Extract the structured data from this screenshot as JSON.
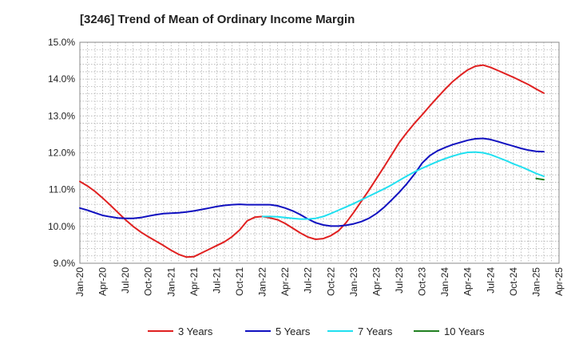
{
  "header": {
    "title": "[3246]  Trend of Mean of Ordinary Income Margin"
  },
  "chart_data": {
    "type": "line",
    "title": "[3246]  Trend of Mean of Ordinary Income Margin",
    "xlabel": "",
    "ylabel": "",
    "x_ticks": [
      "Jan-20",
      "Apr-20",
      "Jul-20",
      "Oct-20",
      "Jan-21",
      "Apr-21",
      "Jul-21",
      "Oct-21",
      "Jan-22",
      "Apr-22",
      "Jul-22",
      "Oct-22",
      "Jan-23",
      "Apr-23",
      "Jul-23",
      "Oct-23",
      "Jan-24",
      "Apr-24",
      "Jul-24",
      "Oct-24",
      "Jan-25",
      "Apr-25"
    ],
    "y_ticks": [
      "9.0%",
      "10.0%",
      "11.0%",
      "12.0%",
      "13.0%",
      "14.0%",
      "15.0%"
    ],
    "ylim": [
      9.0,
      15.0
    ],
    "grid": true,
    "legend_position": "bottom",
    "series": [
      {
        "name": "3 Years",
        "color": "#e02020",
        "points": [
          [
            "Jan-20",
            11.22
          ],
          [
            "Feb-20",
            11.1
          ],
          [
            "Mar-20",
            10.95
          ],
          [
            "Apr-20",
            10.77
          ],
          [
            "May-20",
            10.58
          ],
          [
            "Jun-20",
            10.38
          ],
          [
            "Jul-20",
            10.18
          ],
          [
            "Aug-20",
            10.0
          ],
          [
            "Sep-20",
            9.85
          ],
          [
            "Oct-20",
            9.72
          ],
          [
            "Nov-20",
            9.6
          ],
          [
            "Dec-20",
            9.48
          ],
          [
            "Jan-21",
            9.35
          ],
          [
            "Feb-21",
            9.24
          ],
          [
            "Mar-21",
            9.17
          ],
          [
            "Apr-21",
            9.18
          ],
          [
            "May-21",
            9.28
          ],
          [
            "Jun-21",
            9.38
          ],
          [
            "Jul-21",
            9.48
          ],
          [
            "Aug-21",
            9.58
          ],
          [
            "Sep-21",
            9.72
          ],
          [
            "Oct-21",
            9.9
          ],
          [
            "Nov-21",
            10.15
          ],
          [
            "Dec-21",
            10.25
          ],
          [
            "Jan-22",
            10.27
          ],
          [
            "Feb-22",
            10.23
          ],
          [
            "Mar-22",
            10.18
          ],
          [
            "Apr-22",
            10.08
          ],
          [
            "May-22",
            9.95
          ],
          [
            "Jun-22",
            9.82
          ],
          [
            "Jul-22",
            9.71
          ],
          [
            "Aug-22",
            9.65
          ],
          [
            "Sep-22",
            9.67
          ],
          [
            "Oct-22",
            9.75
          ],
          [
            "Nov-22",
            9.88
          ],
          [
            "Dec-22",
            10.1
          ],
          [
            "Jan-23",
            10.38
          ],
          [
            "Feb-23",
            10.68
          ],
          [
            "Mar-23",
            10.98
          ],
          [
            "Apr-23",
            11.3
          ],
          [
            "May-23",
            11.62
          ],
          [
            "Jun-23",
            11.95
          ],
          [
            "Jul-23",
            12.28
          ],
          [
            "Aug-23",
            12.55
          ],
          [
            "Sep-23",
            12.8
          ],
          [
            "Oct-23",
            13.03
          ],
          [
            "Nov-23",
            13.27
          ],
          [
            "Dec-23",
            13.5
          ],
          [
            "Jan-24",
            13.72
          ],
          [
            "Feb-24",
            13.93
          ],
          [
            "Mar-24",
            14.1
          ],
          [
            "Apr-24",
            14.25
          ],
          [
            "May-24",
            14.35
          ],
          [
            "Jun-24",
            14.38
          ],
          [
            "Jul-24",
            14.32
          ],
          [
            "Aug-24",
            14.23
          ],
          [
            "Sep-24",
            14.14
          ],
          [
            "Oct-24",
            14.05
          ],
          [
            "Nov-24",
            13.95
          ],
          [
            "Dec-24",
            13.85
          ],
          [
            "Jan-25",
            13.73
          ],
          [
            "Feb-25",
            13.62
          ]
        ]
      },
      {
        "name": "5 Years",
        "color": "#1010c0",
        "points": [
          [
            "Jan-20",
            10.5
          ],
          [
            "Feb-20",
            10.44
          ],
          [
            "Mar-20",
            10.37
          ],
          [
            "Apr-20",
            10.3
          ],
          [
            "May-20",
            10.26
          ],
          [
            "Jun-20",
            10.23
          ],
          [
            "Jul-20",
            10.22
          ],
          [
            "Aug-20",
            10.22
          ],
          [
            "Sep-20",
            10.24
          ],
          [
            "Oct-20",
            10.28
          ],
          [
            "Nov-20",
            10.32
          ],
          [
            "Dec-20",
            10.35
          ],
          [
            "Jan-21",
            10.36
          ],
          [
            "Feb-21",
            10.37
          ],
          [
            "Mar-21",
            10.39
          ],
          [
            "Apr-21",
            10.42
          ],
          [
            "May-21",
            10.46
          ],
          [
            "Jun-21",
            10.5
          ],
          [
            "Jul-21",
            10.54
          ],
          [
            "Aug-21",
            10.57
          ],
          [
            "Sep-21",
            10.59
          ],
          [
            "Oct-21",
            10.6
          ],
          [
            "Nov-21",
            10.59
          ],
          [
            "Dec-21",
            10.59
          ],
          [
            "Jan-22",
            10.59
          ],
          [
            "Feb-22",
            10.59
          ],
          [
            "Mar-22",
            10.56
          ],
          [
            "Apr-22",
            10.5
          ],
          [
            "May-22",
            10.42
          ],
          [
            "Jun-22",
            10.32
          ],
          [
            "Jul-22",
            10.2
          ],
          [
            "Aug-22",
            10.1
          ],
          [
            "Sep-22",
            10.04
          ],
          [
            "Oct-22",
            10.01
          ],
          [
            "Nov-22",
            10.01
          ],
          [
            "Dec-22",
            10.03
          ],
          [
            "Jan-23",
            10.07
          ],
          [
            "Feb-23",
            10.13
          ],
          [
            "Mar-23",
            10.22
          ],
          [
            "Apr-23",
            10.35
          ],
          [
            "May-23",
            10.52
          ],
          [
            "Jun-23",
            10.72
          ],
          [
            "Jul-23",
            10.93
          ],
          [
            "Aug-23",
            11.16
          ],
          [
            "Sep-23",
            11.42
          ],
          [
            "Oct-23",
            11.72
          ],
          [
            "Nov-23",
            11.92
          ],
          [
            "Dec-23",
            12.05
          ],
          [
            "Jan-24",
            12.14
          ],
          [
            "Feb-24",
            12.22
          ],
          [
            "Mar-24",
            12.28
          ],
          [
            "Apr-24",
            12.34
          ],
          [
            "May-24",
            12.38
          ],
          [
            "Jun-24",
            12.39
          ],
          [
            "Jul-24",
            12.36
          ],
          [
            "Aug-24",
            12.3
          ],
          [
            "Sep-24",
            12.24
          ],
          [
            "Oct-24",
            12.18
          ],
          [
            "Nov-24",
            12.12
          ],
          [
            "Dec-24",
            12.07
          ],
          [
            "Jan-25",
            12.04
          ],
          [
            "Feb-25",
            12.03
          ]
        ]
      },
      {
        "name": "7 Years",
        "color": "#20e0f0",
        "points": [
          [
            "Jan-22",
            10.27
          ],
          [
            "Feb-22",
            10.27
          ],
          [
            "Mar-22",
            10.26
          ],
          [
            "Apr-22",
            10.24
          ],
          [
            "May-22",
            10.22
          ],
          [
            "Jun-22",
            10.2
          ],
          [
            "Jul-22",
            10.2
          ],
          [
            "Aug-22",
            10.22
          ],
          [
            "Sep-22",
            10.27
          ],
          [
            "Oct-22",
            10.35
          ],
          [
            "Nov-22",
            10.44
          ],
          [
            "Dec-22",
            10.53
          ],
          [
            "Jan-23",
            10.62
          ],
          [
            "Feb-23",
            10.72
          ],
          [
            "Mar-23",
            10.82
          ],
          [
            "Apr-23",
            10.92
          ],
          [
            "May-23",
            11.02
          ],
          [
            "Jun-23",
            11.13
          ],
          [
            "Jul-23",
            11.25
          ],
          [
            "Aug-23",
            11.37
          ],
          [
            "Sep-23",
            11.48
          ],
          [
            "Oct-23",
            11.58
          ],
          [
            "Nov-23",
            11.67
          ],
          [
            "Dec-23",
            11.76
          ],
          [
            "Jan-24",
            11.84
          ],
          [
            "Feb-24",
            11.91
          ],
          [
            "Mar-24",
            11.97
          ],
          [
            "Apr-24",
            12.01
          ],
          [
            "May-24",
            12.02
          ],
          [
            "Jun-24",
            12.0
          ],
          [
            "Jul-24",
            11.95
          ],
          [
            "Aug-24",
            11.87
          ],
          [
            "Sep-24",
            11.79
          ],
          [
            "Oct-24",
            11.7
          ],
          [
            "Nov-24",
            11.62
          ],
          [
            "Dec-24",
            11.53
          ],
          [
            "Jan-25",
            11.44
          ],
          [
            "Feb-25",
            11.36
          ]
        ]
      },
      {
        "name": "10 Years",
        "color": "#208020",
        "points": [
          [
            "Jan-25",
            11.3
          ],
          [
            "Feb-25",
            11.27
          ]
        ]
      }
    ]
  }
}
